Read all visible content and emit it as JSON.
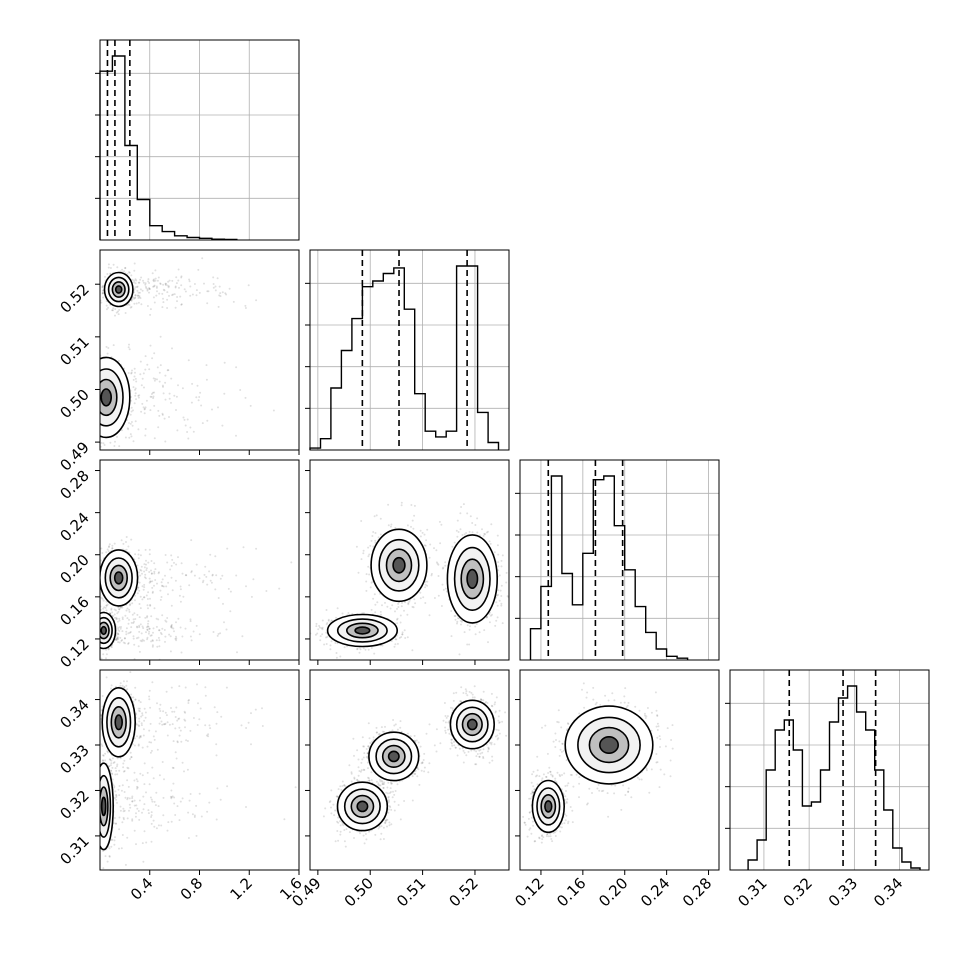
{
  "chart_data": {
    "type": "corner",
    "grid": true,
    "quantile_lines": "dashed",
    "colors": {
      "ink": "#000000",
      "grid": "#b0b0b0",
      "scatter": "#000000"
    },
    "parameters": [
      {
        "range": [
          0,
          1.6
        ],
        "ticks": [
          "0.4",
          "0.8",
          "1.2",
          "1.6"
        ],
        "tick_values": [
          0.4,
          0.8,
          1.2,
          1.6
        ]
      },
      {
        "range": [
          0.4885,
          0.5265
        ],
        "ticks": [
          "0.49",
          "0.50",
          "0.51",
          "0.52"
        ],
        "tick_values": [
          0.49,
          0.5,
          0.51,
          0.52
        ]
      },
      {
        "range": [
          0.1,
          0.29
        ],
        "ticks": [
          "0.12",
          "0.16",
          "0.20",
          "0.24",
          "0.28"
        ],
        "tick_values": [
          0.12,
          0.16,
          0.2,
          0.24,
          0.28
        ]
      },
      {
        "range": [
          0.3025,
          0.3465
        ],
        "ticks": [
          "0.31",
          "0.32",
          "0.33",
          "0.34"
        ],
        "tick_values": [
          0.31,
          0.32,
          0.33,
          0.34
        ]
      }
    ],
    "histograms": [
      {
        "param": 0,
        "bins": [
          0.05,
          0.15,
          0.25,
          0.35,
          0.45,
          0.55,
          0.65,
          0.75,
          0.85,
          0.95,
          1.05
        ],
        "counts": [
          1.0,
          1.09,
          0.56,
          0.24,
          0.085,
          0.05,
          0.025,
          0.015,
          0.01,
          0.005,
          0.003
        ],
        "quantiles": [
          0.06,
          0.12,
          0.24
        ]
      },
      {
        "param": 1,
        "bins": [
          0.4895,
          0.4915,
          0.4935,
          0.4955,
          0.4975,
          0.4995,
          0.5015,
          0.5035,
          0.5055,
          0.5075,
          0.5095,
          0.5115,
          0.5135,
          0.5155,
          0.5175,
          0.5195,
          0.5215,
          0.5235
        ],
        "counts": [
          0.01,
          0.06,
          0.33,
          0.53,
          0.7,
          0.87,
          0.9,
          0.94,
          0.97,
          0.75,
          0.3,
          0.1,
          0.07,
          0.1,
          0.98,
          0.98,
          0.2,
          0.04
        ],
        "quantiles": [
          0.4985,
          0.5055,
          0.5185
        ]
      },
      {
        "param": 2,
        "bins": [
          0.115,
          0.125,
          0.135,
          0.145,
          0.155,
          0.165,
          0.175,
          0.185,
          0.195,
          0.205,
          0.215,
          0.225,
          0.235,
          0.245,
          0.255
        ],
        "counts": [
          0.17,
          0.4,
          1.0,
          0.47,
          0.3,
          0.58,
          0.98,
          1.0,
          0.73,
          0.49,
          0.29,
          0.15,
          0.06,
          0.02,
          0.01
        ],
        "quantiles": [
          0.127,
          0.172,
          0.198
        ]
      },
      {
        "param": 3,
        "bins": [
          0.3075,
          0.3095,
          0.3115,
          0.3135,
          0.3155,
          0.3175,
          0.3195,
          0.3215,
          0.3235,
          0.3255,
          0.3275,
          0.3295,
          0.3315,
          0.3335,
          0.3355,
          0.3375,
          0.3395,
          0.3415,
          0.3435
        ],
        "counts": [
          0.05,
          0.15,
          0.5,
          0.7,
          0.75,
          0.6,
          0.32,
          0.34,
          0.5,
          0.74,
          0.86,
          0.92,
          0.79,
          0.7,
          0.5,
          0.3,
          0.11,
          0.04,
          0.01
        ],
        "quantiles": [
          0.3156,
          0.3275,
          0.3347
        ]
      }
    ],
    "joint_modes": [
      {
        "px": 0,
        "py": 1,
        "centers": [
          [
            0.15,
            0.519
          ],
          [
            0.05,
            0.4985
          ]
        ],
        "spreads": [
          [
            0.06,
            0.0017
          ],
          [
            0.1,
            0.004
          ]
        ]
      },
      {
        "px": 0,
        "py": 2,
        "centers": [
          [
            0.15,
            0.178
          ],
          [
            0.03,
            0.128
          ]
        ],
        "spreads": [
          [
            0.08,
            0.014
          ],
          [
            0.05,
            0.009
          ]
        ]
      },
      {
        "px": 0,
        "py": 3,
        "centers": [
          [
            0.15,
            0.335
          ],
          [
            0.03,
            0.3165
          ]
        ],
        "spreads": [
          [
            0.07,
            0.004
          ],
          [
            0.04,
            0.005
          ]
        ]
      },
      {
        "px": 1,
        "py": 2,
        "centers": [
          [
            0.5055,
            0.19
          ],
          [
            0.5195,
            0.177
          ],
          [
            0.4985,
            0.128
          ]
        ],
        "spreads": [
          [
            0.0028,
            0.018
          ],
          [
            0.0025,
            0.022
          ],
          [
            0.0035,
            0.008
          ]
        ]
      },
      {
        "px": 1,
        "py": 3,
        "centers": [
          [
            0.4985,
            0.3165
          ],
          [
            0.5045,
            0.3275
          ],
          [
            0.5195,
            0.3345
          ]
        ],
        "spreads": [
          [
            0.0025,
            0.0028
          ],
          [
            0.0025,
            0.0028
          ],
          [
            0.0022,
            0.0028
          ]
        ]
      },
      {
        "px": 2,
        "py": 3,
        "centers": [
          [
            0.127,
            0.3165
          ],
          [
            0.185,
            0.33
          ]
        ],
        "spreads": [
          [
            0.008,
            0.003
          ],
          [
            0.022,
            0.0045
          ]
        ]
      }
    ]
  }
}
